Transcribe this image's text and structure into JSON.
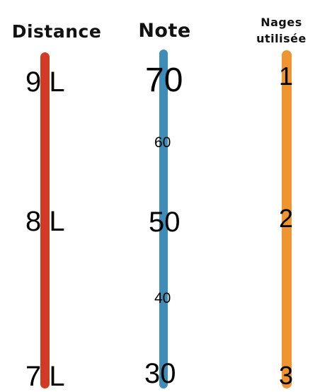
{
  "columns": {
    "distance": {
      "header": "Distance",
      "color": "#d13b26",
      "labels": [
        "9 L",
        "8 L",
        "7 L"
      ]
    },
    "note": {
      "header": "Note",
      "color": "#3d8db8",
      "labels": [
        "70",
        "60",
        "50",
        "40",
        "30"
      ]
    },
    "nages": {
      "header_line1": "Nages",
      "header_line2": "utilisée",
      "color": "#ee9430",
      "labels": [
        "1",
        "2",
        "3"
      ]
    }
  }
}
